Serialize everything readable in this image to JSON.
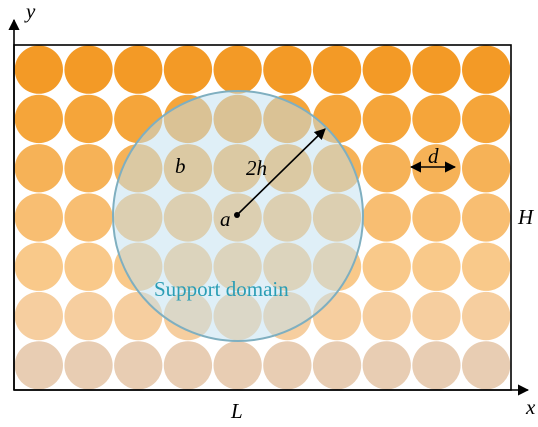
{
  "labels": {
    "y_axis": "y",
    "x_axis": "x",
    "height": "H",
    "length": "L",
    "radius": "2h",
    "particle_a": "a",
    "particle_b": "b",
    "diameter": "d",
    "domain": "Support domain"
  },
  "grid": {
    "columns": 10,
    "rows": 7
  },
  "colors": {
    "row_fills": [
      "#F39A26",
      "#F5A53A",
      "#F6B257",
      "#F8BE72",
      "#F9C98A",
      "#F6CE9F",
      "#E8CDB3"
    ],
    "domain_fill": "#BFE0EF",
    "domain_stroke": "#7FAFC0",
    "domain_text": "#2A9DB5",
    "axis": "#000000"
  }
}
